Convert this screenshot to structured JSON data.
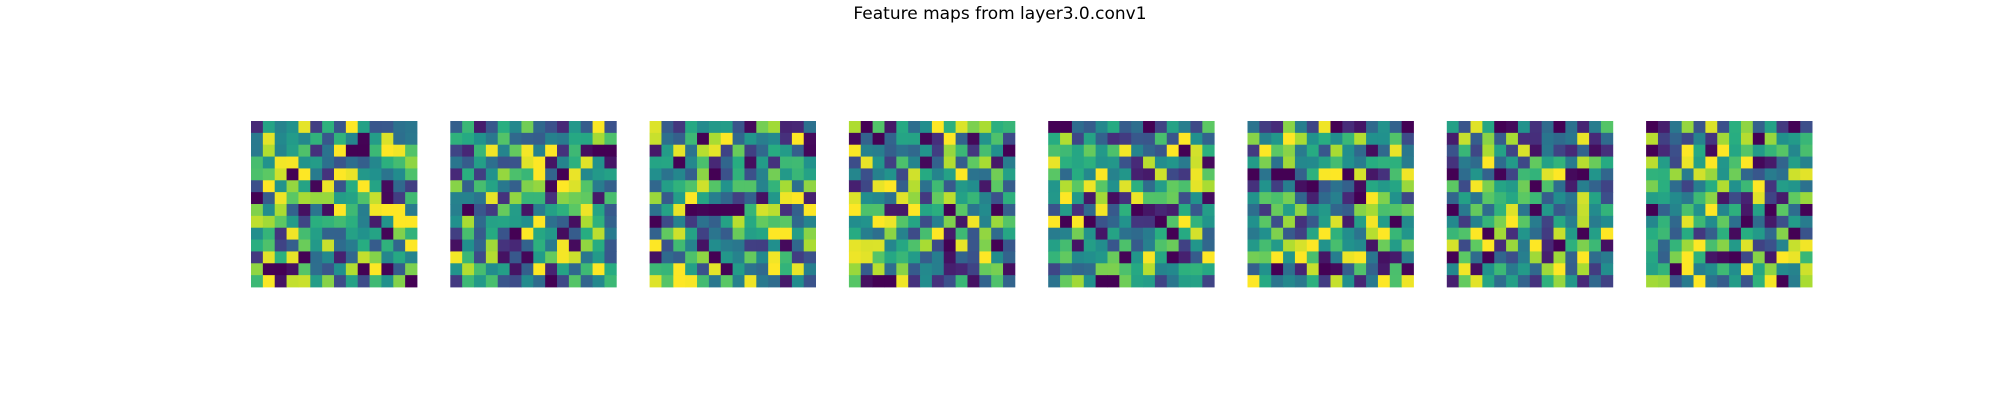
{
  "title": "Feature maps from layer3.0.conv1",
  "chart_data": {
    "type": "heatmap",
    "title": "Feature maps from layer3.0.conv1",
    "colormap": "viridis",
    "axes": "off",
    "grid": false,
    "grid_rows": 14,
    "grid_cols": 14,
    "maps": [
      {
        "index": 0,
        "seed": 11
      },
      {
        "index": 1,
        "seed": 23
      },
      {
        "index": 2,
        "seed": 37
      },
      {
        "index": 3,
        "seed": 41
      },
      {
        "index": 4,
        "seed": 53
      },
      {
        "index": 5,
        "seed": 67
      },
      {
        "index": 6,
        "seed": 79
      },
      {
        "index": 7,
        "seed": 97
      }
    ]
  }
}
